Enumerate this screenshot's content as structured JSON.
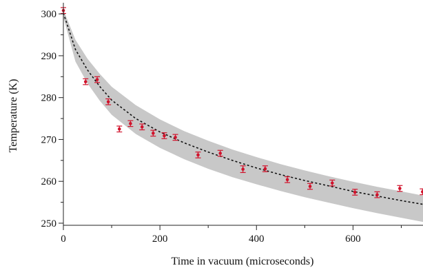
{
  "chart_data": {
    "type": "scatter",
    "xlabel": "Time in vacuum (microseconds)",
    "ylabel": "Temperature (K)",
    "xlim": [
      0,
      745
    ],
    "ylim": [
      249.5,
      302
    ],
    "x_ticks": [
      0,
      200,
      400,
      600
    ],
    "y_ticks": [
      250,
      260,
      270,
      280,
      290,
      300
    ],
    "x_tick_labels": [
      "0",
      "200",
      "400",
      "600"
    ],
    "y_tick_labels": [
      "250",
      "260",
      "270",
      "280",
      "290",
      "300"
    ],
    "grid": false,
    "legend": "none",
    "colors": {
      "points": "#d1122b",
      "band": "#c8c8c8",
      "fit": "#111111"
    },
    "points": [
      {
        "x": 0,
        "y": 300.8,
        "err": 0.7
      },
      {
        "x": 46,
        "y": 283.8,
        "err": 0.7
      },
      {
        "x": 70,
        "y": 284.3,
        "err": 0.7
      },
      {
        "x": 93,
        "y": 279.0,
        "err": 0.7
      },
      {
        "x": 116,
        "y": 272.5,
        "err": 0.7
      },
      {
        "x": 139,
        "y": 273.8,
        "err": 0.7
      },
      {
        "x": 163,
        "y": 273.0,
        "err": 0.7
      },
      {
        "x": 186,
        "y": 271.5,
        "err": 0.7
      },
      {
        "x": 209,
        "y": 270.9,
        "err": 0.7
      },
      {
        "x": 232,
        "y": 270.5,
        "err": 0.7
      },
      {
        "x": 279,
        "y": 266.3,
        "err": 0.7
      },
      {
        "x": 325,
        "y": 266.7,
        "err": 0.7
      },
      {
        "x": 372,
        "y": 262.9,
        "err": 0.8
      },
      {
        "x": 418,
        "y": 263.0,
        "err": 0.7
      },
      {
        "x": 464,
        "y": 260.4,
        "err": 0.7
      },
      {
        "x": 511,
        "y": 258.8,
        "err": 0.7
      },
      {
        "x": 557,
        "y": 259.6,
        "err": 0.7
      },
      {
        "x": 604,
        "y": 257.4,
        "err": 0.7
      },
      {
        "x": 650,
        "y": 256.8,
        "err": 0.7
      },
      {
        "x": 697,
        "y": 258.3,
        "err": 0.7
      },
      {
        "x": 744,
        "y": 257.5,
        "err": 0.7
      }
    ],
    "fit_curve": [
      {
        "x": 0,
        "y": 300.2
      },
      {
        "x": 25,
        "y": 291.5
      },
      {
        "x": 50,
        "y": 286.6
      },
      {
        "x": 75,
        "y": 282.7
      },
      {
        "x": 100,
        "y": 279.4
      },
      {
        "x": 150,
        "y": 275.0
      },
      {
        "x": 200,
        "y": 271.8
      },
      {
        "x": 250,
        "y": 269.2
      },
      {
        "x": 300,
        "y": 267.0
      },
      {
        "x": 350,
        "y": 265.0
      },
      {
        "x": 400,
        "y": 263.2
      },
      {
        "x": 450,
        "y": 261.6
      },
      {
        "x": 500,
        "y": 260.2
      },
      {
        "x": 550,
        "y": 258.9
      },
      {
        "x": 600,
        "y": 257.6
      },
      {
        "x": 650,
        "y": 256.5
      },
      {
        "x": 700,
        "y": 255.4
      },
      {
        "x": 745,
        "y": 254.5
      }
    ],
    "band_upper": [
      {
        "x": 0,
        "y": 301.0
      },
      {
        "x": 25,
        "y": 293.8
      },
      {
        "x": 50,
        "y": 289.3
      },
      {
        "x": 75,
        "y": 285.7
      },
      {
        "x": 100,
        "y": 282.6
      },
      {
        "x": 150,
        "y": 278.2
      },
      {
        "x": 200,
        "y": 274.8
      },
      {
        "x": 250,
        "y": 272.0
      },
      {
        "x": 300,
        "y": 269.7
      },
      {
        "x": 350,
        "y": 267.6
      },
      {
        "x": 400,
        "y": 265.8
      },
      {
        "x": 450,
        "y": 264.1
      },
      {
        "x": 500,
        "y": 262.6
      },
      {
        "x": 550,
        "y": 261.2
      },
      {
        "x": 600,
        "y": 259.9
      },
      {
        "x": 650,
        "y": 258.7
      },
      {
        "x": 700,
        "y": 257.6
      },
      {
        "x": 745,
        "y": 256.6
      }
    ],
    "band_lower": [
      {
        "x": 0,
        "y": 299.2
      },
      {
        "x": 25,
        "y": 288.6
      },
      {
        "x": 50,
        "y": 283.4
      },
      {
        "x": 75,
        "y": 279.3
      },
      {
        "x": 100,
        "y": 275.9
      },
      {
        "x": 150,
        "y": 271.3
      },
      {
        "x": 200,
        "y": 268.0
      },
      {
        "x": 250,
        "y": 265.3
      },
      {
        "x": 300,
        "y": 263.0
      },
      {
        "x": 350,
        "y": 261.0
      },
      {
        "x": 400,
        "y": 259.3
      },
      {
        "x": 450,
        "y": 257.7
      },
      {
        "x": 500,
        "y": 256.2
      },
      {
        "x": 550,
        "y": 254.9
      },
      {
        "x": 600,
        "y": 253.6
      },
      {
        "x": 650,
        "y": 252.4
      },
      {
        "x": 700,
        "y": 251.3
      },
      {
        "x": 745,
        "y": 250.3
      }
    ]
  }
}
